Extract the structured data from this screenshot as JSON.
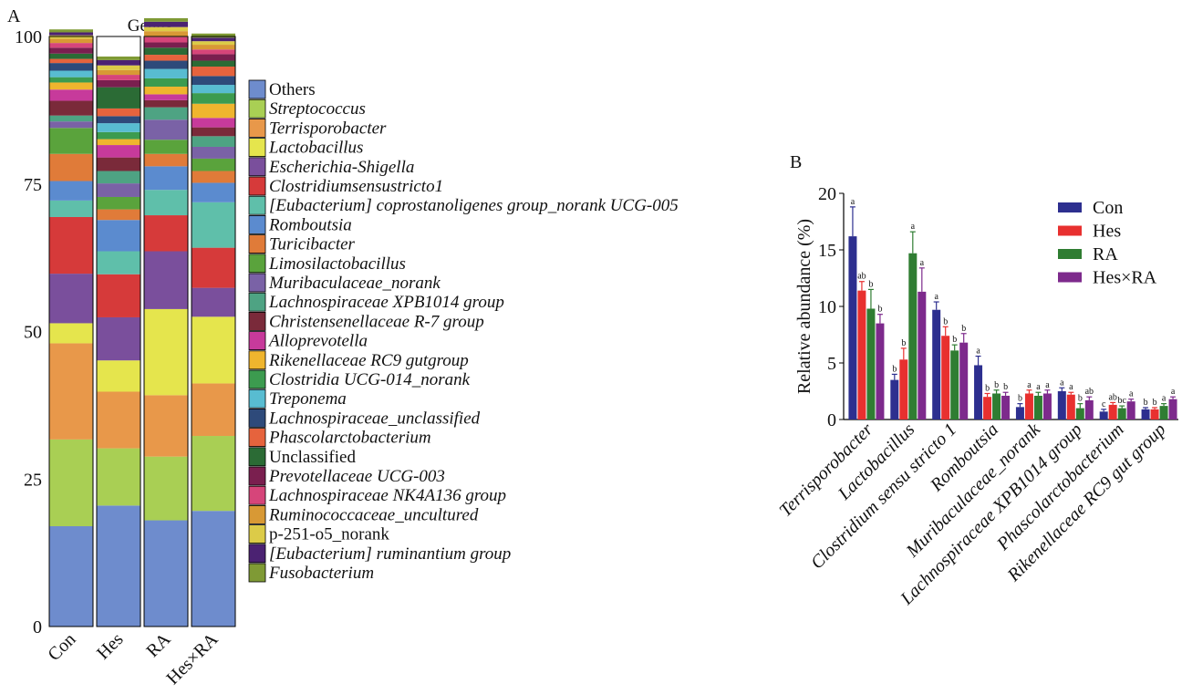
{
  "chart_data": [
    {
      "panel": "A",
      "type": "bar",
      "stacked": true,
      "title": "Genus",
      "ylim": [
        0,
        100
      ],
      "yticks": [
        0,
        25,
        50,
        75,
        100
      ],
      "categories": [
        "Con",
        "Hes",
        "RA",
        "Hes×RA"
      ],
      "legend_placement": "right",
      "series": [
        {
          "name": "Others",
          "color": "#6e8ccd",
          "italic": false,
          "values": [
            17.0,
            20.5,
            18.0,
            19.6
          ]
        },
        {
          "name": "Streptococcus",
          "color": "#a9cf54",
          "italic": true,
          "values": [
            14.7,
            9.7,
            10.8,
            12.7
          ]
        },
        {
          "name": "Terrisporobacter",
          "color": "#e8984a",
          "italic": true,
          "values": [
            16.3,
            9.6,
            10.4,
            8.9
          ]
        },
        {
          "name": "Lactobacillus",
          "color": "#e5e54d",
          "italic": true,
          "values": [
            3.4,
            5.3,
            14.6,
            11.3
          ]
        },
        {
          "name": "Escherichia-Shigella",
          "color": "#7a4f9c",
          "italic": true,
          "values": [
            8.4,
            7.3,
            9.8,
            4.9
          ]
        },
        {
          "name": "Clostridiumsensustricto1",
          "color": "#d63a3a",
          "italic": true,
          "values": [
            9.6,
            7.3,
            6.1,
            6.8
          ]
        },
        {
          "name": "[Eubacterium] coprostanoligenes group_norank UCG-005",
          "color": "#5fbfaa",
          "italic": true,
          "values": [
            2.8,
            3.9,
            4.3,
            7.7
          ]
        },
        {
          "name": "Romboutsia",
          "color": "#5b8bcf",
          "italic": true,
          "values": [
            3.3,
            5.3,
            4.0,
            3.3
          ]
        },
        {
          "name": "Turicibacter",
          "color": "#e07b39",
          "italic": true,
          "values": [
            4.6,
            1.8,
            2.1,
            2.0
          ]
        },
        {
          "name": "Limosilactobacillus",
          "color": "#5aa33c",
          "italic": true,
          "values": [
            4.4,
            2.1,
            2.4,
            2.1
          ]
        },
        {
          "name": "Muribaculaceae_norank",
          "color": "#7a62a6",
          "italic": true,
          "values": [
            1.1,
            2.3,
            3.4,
            2.0
          ]
        },
        {
          "name": "Lachnospiraceae XPB1014 group",
          "color": "#4ea383",
          "italic": true,
          "values": [
            1.0,
            2.1,
            2.1,
            1.8
          ]
        },
        {
          "name": "Christensenellaceae R-7 group",
          "color": "#7a2a3a",
          "italic": true,
          "values": [
            2.5,
            2.3,
            1.2,
            1.5
          ]
        },
        {
          "name": "Alloprevotella",
          "color": "#c73a9b",
          "italic": true,
          "values": [
            1.9,
            2.1,
            1.0,
            1.6
          ]
        },
        {
          "name": "Rikenellaceae RC9 gutgroup",
          "color": "#efb52e",
          "italic": true,
          "values": [
            1.2,
            1.0,
            1.3,
            2.4
          ]
        },
        {
          "name": "Clostridia UCG-014_norank",
          "color": "#3c9b4f",
          "italic": true,
          "values": [
            0.9,
            1.2,
            1.4,
            1.8
          ]
        },
        {
          "name": "Treponema",
          "color": "#58bcd1",
          "italic": true,
          "values": [
            1.1,
            1.5,
            1.6,
            1.4
          ]
        },
        {
          "name": "Lachnospiraceae_unclassified",
          "color": "#2e4a7a",
          "italic": true,
          "values": [
            1.3,
            1.2,
            1.4,
            1.5
          ]
        },
        {
          "name": "Phascolarctobacterium",
          "color": "#e6633d",
          "italic": true,
          "values": [
            0.7,
            1.3,
            1.0,
            1.6
          ]
        },
        {
          "name": "Unclassified",
          "color": "#2b6b35",
          "italic": false,
          "values": [
            0.9,
            3.6,
            1.2,
            1.0
          ]
        },
        {
          "name": "Prevotellaceae UCG-003",
          "color": "#7a1f4f",
          "italic": true,
          "values": [
            1.0,
            1.2,
            0.9,
            1.1
          ]
        },
        {
          "name": "Lachnospiraceae NK4A136 group",
          "color": "#d6457a",
          "italic": true,
          "values": [
            0.8,
            0.9,
            0.9,
            0.8
          ]
        },
        {
          "name": "Ruminococcaceae_uncultured",
          "color": "#d89935",
          "italic": true,
          "values": [
            0.7,
            0.8,
            1.0,
            0.8
          ]
        },
        {
          "name": "p-251-o5_norank",
          "color": "#dccb48",
          "italic": false,
          "values": [
            0.6,
            0.8,
            0.7,
            0.6
          ]
        },
        {
          "name": "[Eubacterium] ruminantium group",
          "color": "#4b2272",
          "italic": true,
          "values": [
            0.5,
            0.9,
            0.9,
            0.6
          ]
        },
        {
          "name": "Fusobacterium",
          "color": "#7f9a35",
          "italic": true,
          "values": [
            0.5,
            0.6,
            0.6,
            0.7
          ]
        }
      ]
    },
    {
      "panel": "B",
      "type": "bar",
      "ylabel": "Relative abundance (%)",
      "ylim": [
        0,
        20
      ],
      "yticks": [
        0,
        5,
        10,
        15,
        20
      ],
      "legend_placement": "top-right",
      "error_bars": true,
      "categories": [
        "Terrisporobacter",
        "Lactobacillus",
        "Clostridium sensu stricto 1",
        "Romboutsia",
        "Muribaculaceae_norank",
        "Lachnospiraceae XPB1014 group",
        "Phascolarctobacterium",
        "Rikenellaceae RC9 gut group"
      ],
      "series": [
        {
          "name": "Con",
          "color": "#2d2f8f",
          "values": [
            16.2,
            3.5,
            9.7,
            4.8,
            1.1,
            2.5,
            0.7,
            0.9
          ],
          "errors": [
            2.6,
            0.5,
            0.7,
            0.8,
            0.3,
            0.3,
            0.2,
            0.15
          ],
          "letters": [
            "a",
            "b",
            "a",
            "a",
            "b",
            "a",
            "c",
            "b"
          ]
        },
        {
          "name": "Hes",
          "color": "#e8302f",
          "values": [
            11.4,
            5.3,
            7.4,
            2.0,
            2.3,
            2.2,
            1.3,
            0.9
          ],
          "errors": [
            0.8,
            1.0,
            0.8,
            0.3,
            0.3,
            0.2,
            0.2,
            0.15
          ],
          "letters": [
            "ab",
            "b",
            "b",
            "b",
            "a",
            "a",
            "ab",
            "b"
          ]
        },
        {
          "name": "RA",
          "color": "#2f7d32",
          "values": [
            9.8,
            14.7,
            6.1,
            2.3,
            2.1,
            1.0,
            1.0,
            1.2
          ],
          "errors": [
            1.7,
            1.9,
            0.5,
            0.3,
            0.3,
            0.4,
            0.2,
            0.2
          ],
          "letters": [
            "b",
            "a",
            "b",
            "b",
            "a",
            "b",
            "bc",
            "a"
          ]
        },
        {
          "name": "Hes×RA",
          "color": "#7d2a8c",
          "values": [
            8.5,
            11.3,
            6.8,
            2.1,
            2.3,
            1.7,
            1.6,
            1.8
          ],
          "errors": [
            0.8,
            2.1,
            0.8,
            0.3,
            0.3,
            0.3,
            0.2,
            0.2
          ],
          "letters": [
            "b",
            "a",
            "b",
            "b",
            "a",
            "ab",
            "a",
            "a"
          ]
        }
      ]
    }
  ],
  "labels": {
    "panel_a": "A",
    "panel_b": "B"
  }
}
